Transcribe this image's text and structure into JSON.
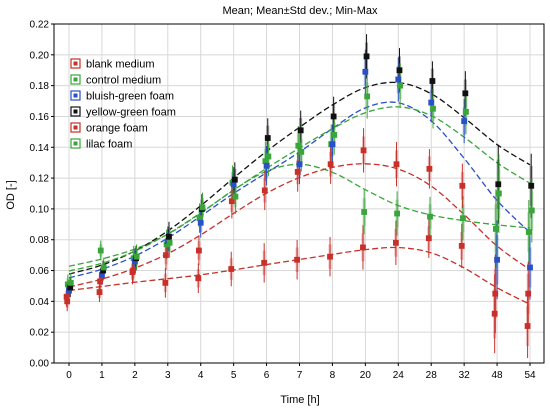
{
  "chart_data": {
    "type": "line",
    "title": "Mean;  Mean±Std dev.; Min-Max",
    "xlabel": "Time [h]",
    "ylabel": "OD [-]",
    "categories": [
      "0",
      "1",
      "2",
      "3",
      "4",
      "5",
      "6",
      "7",
      "8",
      "20",
      "24",
      "28",
      "32",
      "48",
      "54"
    ],
    "ylim": [
      0.0,
      0.22
    ],
    "yticks": [
      "0.00",
      "0.02",
      "0.04",
      "0.06",
      "0.08",
      "0.10",
      "0.12",
      "0.14",
      "0.16",
      "0.18",
      "0.20",
      "0.22"
    ],
    "grid": true,
    "legend_position": "top-left",
    "series": [
      {
        "name": "blank medium",
        "color": "#c8302a",
        "values": [
          0.043,
          0.046,
          0.059,
          0.052,
          0.055,
          0.061,
          0.065,
          0.067,
          0.069,
          0.075,
          0.078,
          0.081,
          0.076,
          0.032,
          0.024
        ]
      },
      {
        "name": "control medium",
        "color": "#3aa53a",
        "values": [
          0.051,
          0.073,
          0.068,
          0.077,
          0.094,
          0.117,
          0.131,
          0.141,
          0.142,
          0.098,
          0.097,
          0.095,
          0.094,
          0.087,
          0.085
        ]
      },
      {
        "name": "bluish-green foam",
        "color": "#2850c8",
        "values": [
          0.047,
          0.057,
          0.066,
          0.079,
          0.091,
          0.116,
          0.128,
          0.129,
          0.142,
          0.189,
          0.184,
          0.169,
          0.157,
          0.067,
          0.062
        ]
      },
      {
        "name": "yellow-green foam",
        "color": "#111111",
        "values": [
          0.049,
          0.06,
          0.068,
          0.082,
          0.1,
          0.119,
          0.146,
          0.151,
          0.16,
          0.199,
          0.19,
          0.183,
          0.175,
          0.116,
          0.115
        ]
      },
      {
        "name": "orange foam",
        "color": "#c8302a",
        "values": [
          0.04,
          0.053,
          0.06,
          0.07,
          0.073,
          0.105,
          0.112,
          0.124,
          0.129,
          0.138,
          0.129,
          0.126,
          0.115,
          0.045,
          0.045
        ]
      },
      {
        "name": "lilac foam",
        "color": "#3aa53a",
        "values": [
          0.052,
          0.062,
          0.069,
          0.078,
          0.101,
          0.108,
          0.134,
          0.137,
          0.148,
          0.173,
          0.18,
          0.165,
          0.163,
          0.11,
          0.099
        ]
      }
    ]
  }
}
